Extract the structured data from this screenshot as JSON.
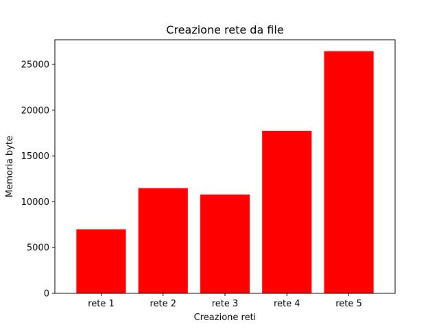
{
  "chart_data": {
    "type": "bar",
    "title": "Creazione rete da file",
    "xlabel": "Creazione reti",
    "ylabel": "Memoria byte",
    "categories": [
      "rete 1",
      "rete 2",
      "rete 3",
      "rete 4",
      "rete 5"
    ],
    "values": [
      7000,
      11500,
      10800,
      17750,
      26450
    ],
    "ylim": [
      0,
      27700
    ],
    "yticks": [
      0,
      5000,
      10000,
      15000,
      20000,
      25000
    ],
    "bar_color": "#ff0000",
    "grid": false
  }
}
